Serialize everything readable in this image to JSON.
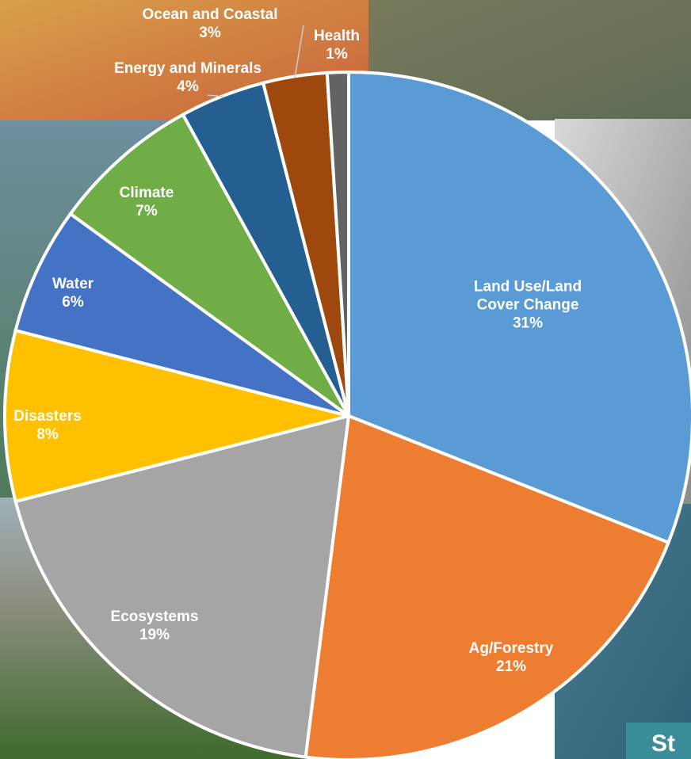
{
  "chart_data": {
    "type": "pie",
    "categories": [
      "Land Use/Land Cover Change",
      "Ag/Forestry",
      "Ecosystems",
      "Disasters",
      "Water",
      "Climate",
      "Energy and Minerals",
      "Ocean and Coastal",
      "Health"
    ],
    "values": [
      31,
      21,
      19,
      8,
      6,
      7,
      4,
      3,
      1
    ],
    "value_labels": [
      "31%",
      "21%",
      "19%",
      "8%",
      "6%",
      "7%",
      "4%",
      "3%",
      "1%"
    ],
    "colors": [
      "#5b9bd5",
      "#ed7d31",
      "#a5a5a5",
      "#ffc000",
      "#4472c4",
      "#70ad47",
      "#255e91",
      "#9e480e",
      "#636363"
    ]
  },
  "overlay_text": "St"
}
